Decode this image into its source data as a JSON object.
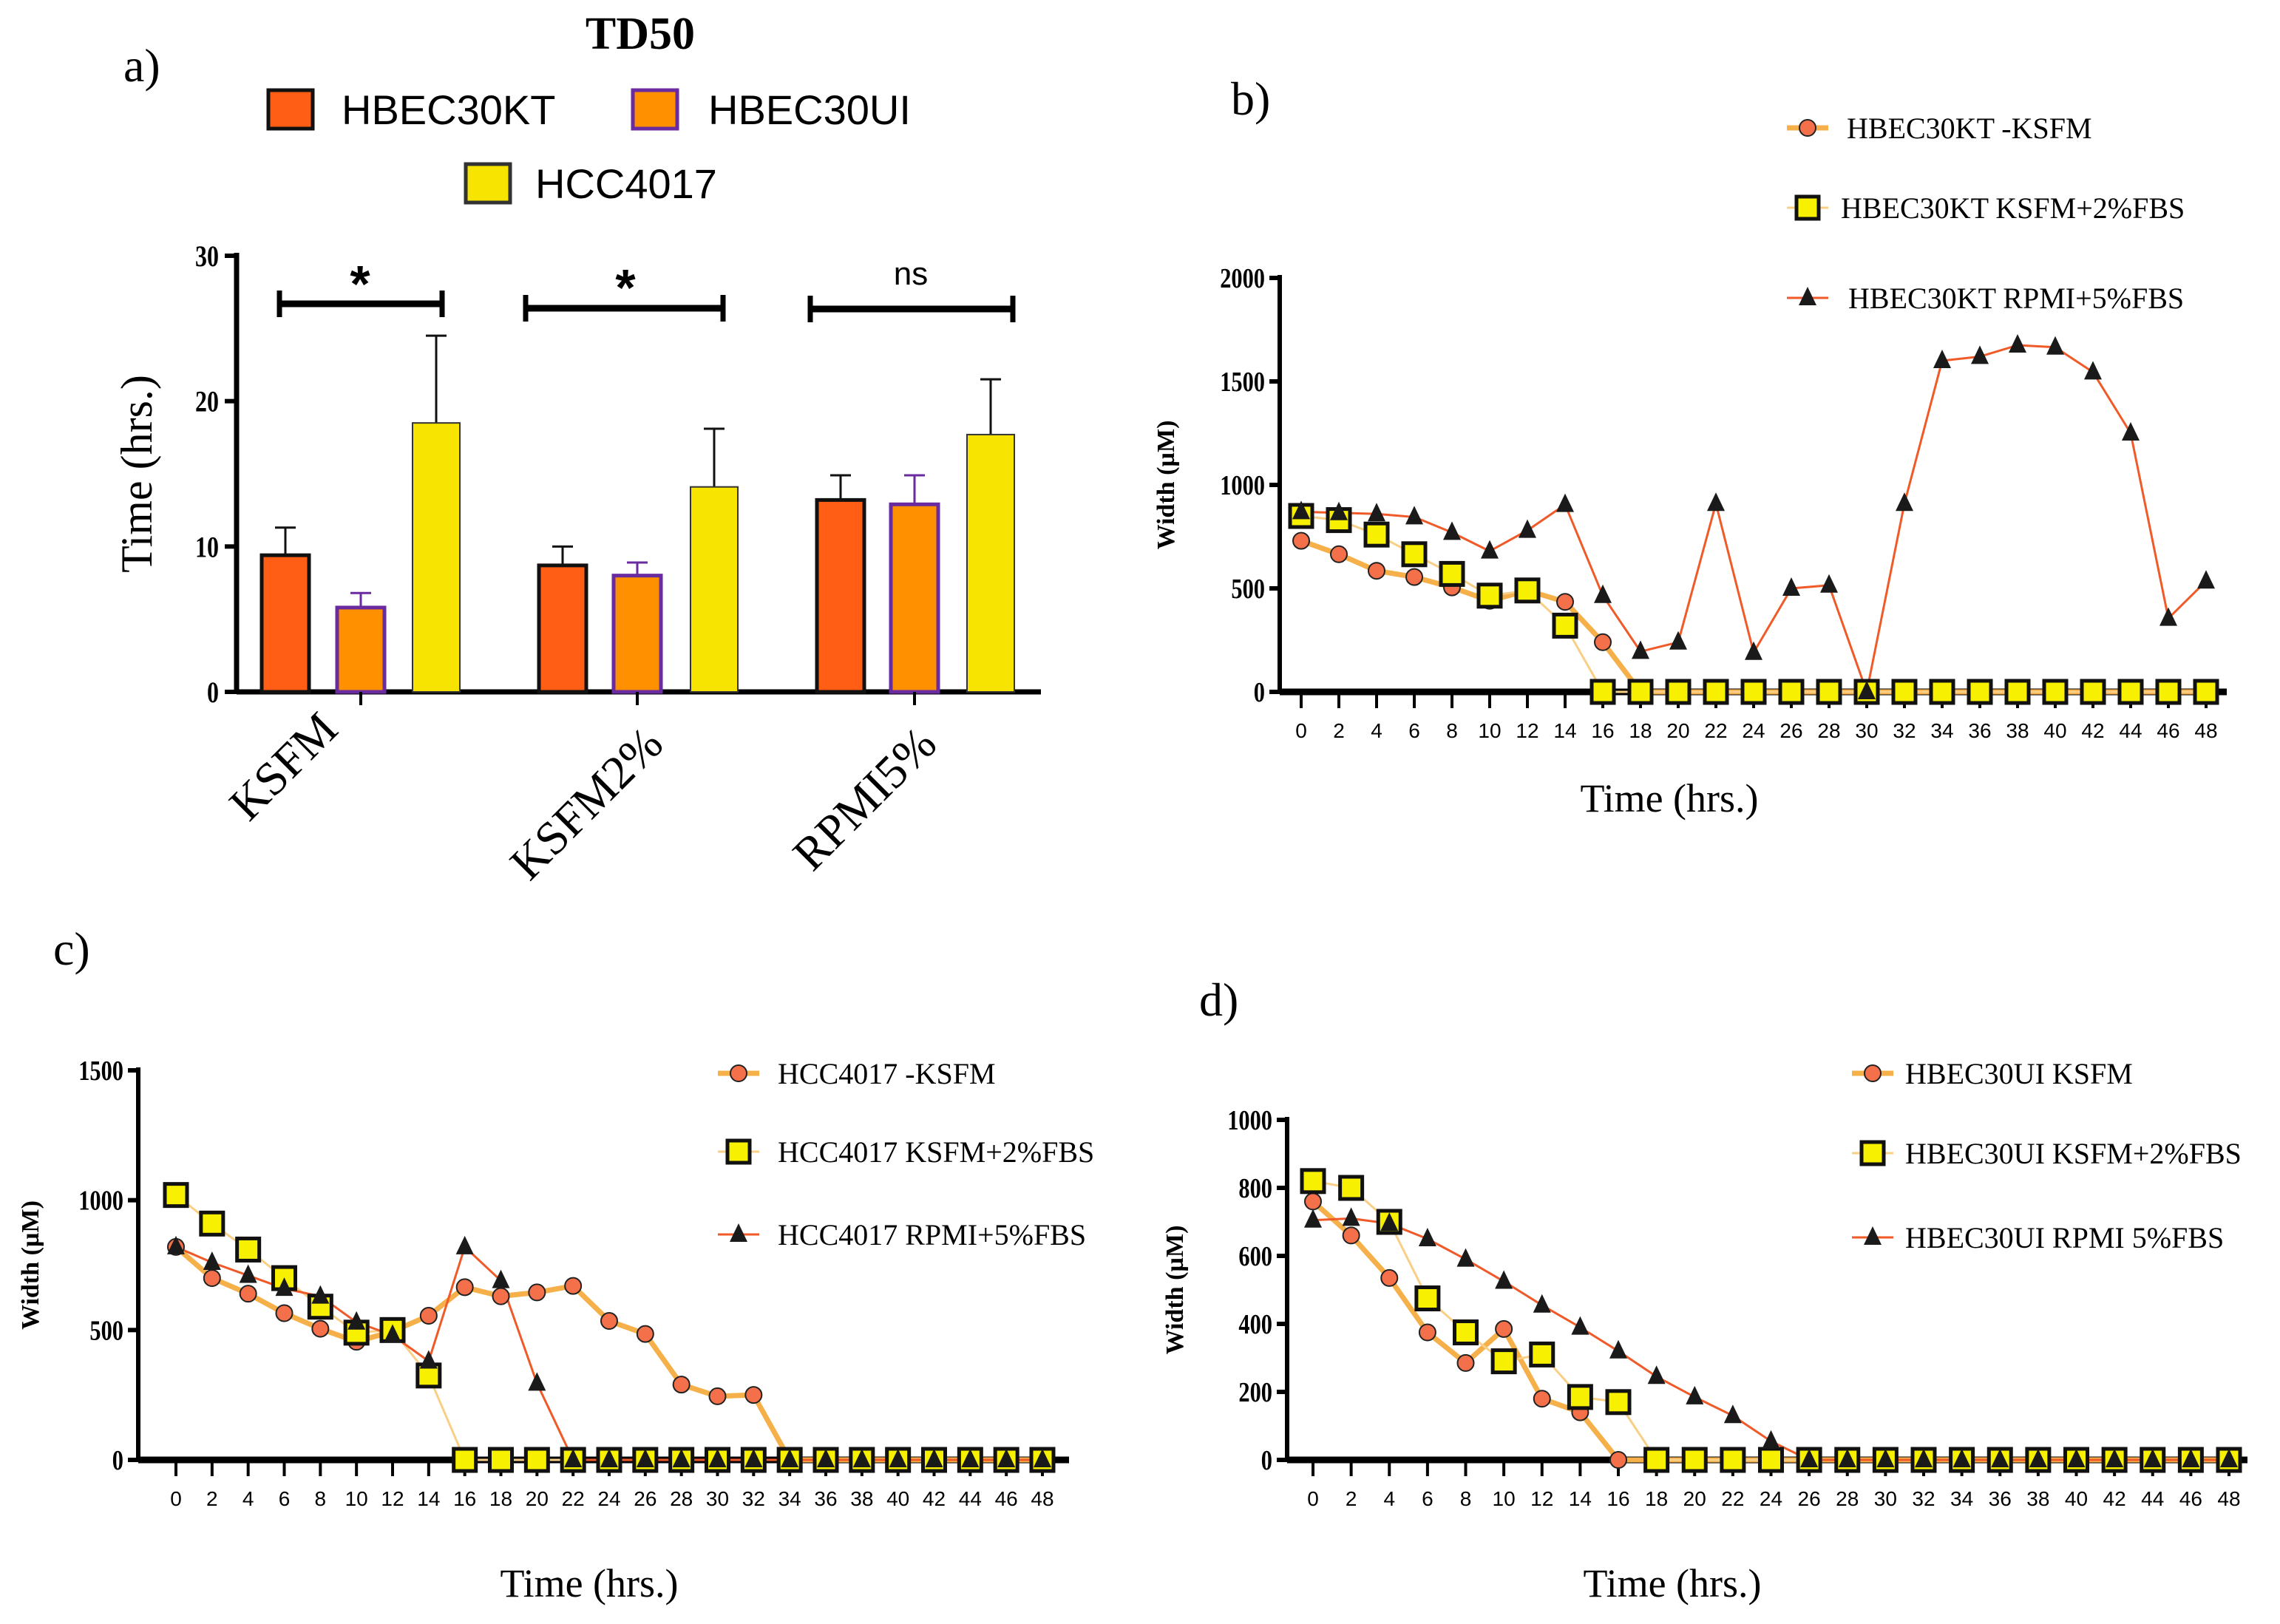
{
  "colors": {
    "hbec30kt_bar": "#ff5e14",
    "hbec30ui_bar": "#ff9100",
    "hbec30ui_edge": "#6a2aa0",
    "hcc4017_bar": "#f7e400",
    "circle_fill": "#f4704a",
    "circle_line": "#f6b04a",
    "square_fill": "#f7f000",
    "square_line": "#f9cf86",
    "triangle_line": "#f05a28",
    "triangle_fill": "#1a1a1a"
  },
  "chart_data": [
    {
      "panel_label": "a)",
      "type": "bar",
      "title": "TD50",
      "ylabel": "Time (hrs.)",
      "xlabel": "",
      "ylim": [
        0,
        30
      ],
      "yticks": [
        "0",
        "10",
        "20",
        "30"
      ],
      "categories": [
        "KSFM",
        "KSFM2%",
        "RPMI5%"
      ],
      "legend_position": "top",
      "series": [
        {
          "name": "HBEC30KT",
          "values": [
            9.4,
            8.7,
            13.2
          ],
          "errors": [
            1.9,
            1.3,
            1.7
          ]
        },
        {
          "name": "HBEC30UI",
          "values": [
            5.8,
            8.0,
            12.9
          ],
          "errors": [
            1.0,
            0.9,
            2.0
          ]
        },
        {
          "name": "HCC4017",
          "values": [
            18.5,
            14.1,
            17.7
          ],
          "errors": [
            6.0,
            4.0,
            3.8
          ]
        }
      ],
      "significance": [
        "*",
        "*",
        "ns"
      ]
    },
    {
      "panel_label": "b)",
      "type": "line",
      "xlabel": "Time (hrs.)",
      "ylabel": "Width (µM)",
      "ylim": [
        0,
        2000
      ],
      "yticks": [
        "0",
        "500",
        "1000",
        "1500",
        "2000"
      ],
      "x": [
        0,
        2,
        4,
        6,
        8,
        10,
        12,
        14,
        16,
        18,
        20,
        22,
        24,
        26,
        28,
        30,
        32,
        34,
        36,
        38,
        40,
        42,
        44,
        46,
        48
      ],
      "legend_position": "top-right",
      "series": [
        {
          "name": "HBEC30KT -KSFM",
          "marker": "circle",
          "values": [
            730,
            665,
            585,
            555,
            505,
            440,
            490,
            435,
            240,
            0,
            0,
            0,
            0,
            0,
            0,
            0,
            0,
            0,
            0,
            0,
            0,
            0,
            0,
            0,
            0
          ]
        },
        {
          "name": "HBEC30KT  KSFM+2%FBS",
          "marker": "square",
          "values": [
            850,
            830,
            760,
            665,
            570,
            465,
            490,
            320,
            0,
            0,
            0,
            0,
            0,
            0,
            0,
            0,
            0,
            0,
            0,
            0,
            0,
            0,
            0,
            0,
            0
          ]
        },
        {
          "name": "HBEC30KT RPMI+5%FBS",
          "marker": "triangle",
          "values": [
            870,
            865,
            860,
            845,
            770,
            680,
            780,
            905,
            465,
            195,
            240,
            910,
            190,
            500,
            515,
            0,
            910,
            1600,
            1620,
            1675,
            1665,
            1545,
            1250,
            355,
            535
          ]
        }
      ]
    },
    {
      "panel_label": "c)",
      "type": "line",
      "xlabel": "Time (hrs.)",
      "ylabel": "Width (µM)",
      "ylim": [
        0,
        1500
      ],
      "yticks": [
        "0",
        "500",
        "1000",
        "1500"
      ],
      "x": [
        0,
        2,
        4,
        6,
        8,
        10,
        12,
        14,
        16,
        18,
        20,
        22,
        24,
        26,
        28,
        30,
        32,
        34,
        36,
        38,
        40,
        42,
        44,
        46,
        48
      ],
      "legend_position": "top-right",
      "series": [
        {
          "name": "HCC4017 -KSFM",
          "marker": "circle",
          "values": [
            820,
            700,
            640,
            565,
            505,
            455,
            495,
            555,
            665,
            630,
            645,
            670,
            535,
            485,
            290,
            245,
            250,
            0,
            0,
            0,
            0,
            0,
            0,
            0,
            0
          ]
        },
        {
          "name": "HCC4017 KSFM+2%FBS",
          "marker": "square",
          "values": [
            1020,
            910,
            810,
            700,
            590,
            490,
            500,
            325,
            0,
            0,
            0,
            0,
            0,
            0,
            0,
            0,
            0,
            0,
            0,
            0,
            0,
            0,
            0,
            0,
            0
          ]
        },
        {
          "name": "HCC4017 RPMI+5%FBS",
          "marker": "triangle",
          "values": [
            820,
            760,
            710,
            660,
            630,
            530,
            480,
            380,
            820,
            690,
            295,
            0,
            0,
            0,
            0,
            0,
            0,
            0,
            0,
            0,
            0,
            0,
            0,
            0,
            0
          ]
        }
      ]
    },
    {
      "panel_label": "d)",
      "type": "line",
      "xlabel": "Time (hrs.)",
      "ylabel": "Width (µM)",
      "ylim": [
        0,
        1000
      ],
      "yticks": [
        "0",
        "200",
        "400",
        "600",
        "800",
        "1000"
      ],
      "x": [
        0,
        2,
        4,
        6,
        8,
        10,
        12,
        14,
        16,
        18,
        20,
        22,
        24,
        26,
        28,
        30,
        32,
        34,
        36,
        38,
        40,
        42,
        44,
        46,
        48
      ],
      "legend_position": "top-right",
      "series": [
        {
          "name": "HBEC30UI KSFM",
          "marker": "circle",
          "values": [
            760,
            660,
            535,
            375,
            285,
            385,
            180,
            140,
            0,
            0,
            0,
            0,
            0,
            0,
            0,
            0,
            0,
            0,
            0,
            0,
            0,
            0,
            0,
            0,
            0
          ]
        },
        {
          "name": "HBEC30UI KSFM+2%FBS",
          "marker": "square",
          "values": [
            820,
            800,
            700,
            475,
            375,
            290,
            310,
            185,
            170,
            0,
            0,
            0,
            0,
            0,
            0,
            0,
            0,
            0,
            0,
            0,
            0,
            0,
            0,
            0,
            0
          ]
        },
        {
          "name": "HBEC30UI RPMI 5%FBS",
          "marker": "triangle",
          "values": [
            705,
            710,
            695,
            650,
            590,
            525,
            455,
            390,
            320,
            245,
            185,
            130,
            55,
            0,
            0,
            0,
            0,
            0,
            0,
            0,
            0,
            0,
            0,
            0,
            0
          ]
        }
      ]
    }
  ]
}
